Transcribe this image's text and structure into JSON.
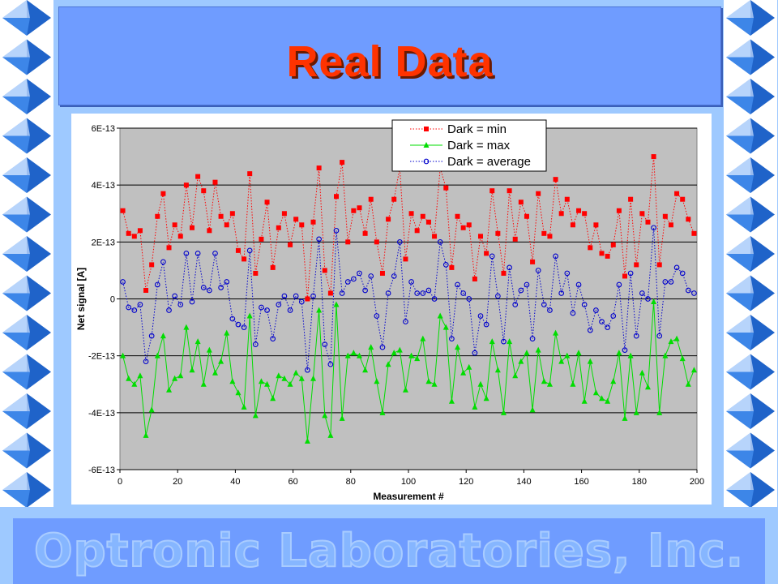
{
  "slide": {
    "title": "Real Data",
    "footer": "Optronic Laboratories, Inc."
  },
  "colors": {
    "background": "#9ec9ff",
    "title_bar": "#6f9cff",
    "title_text": "#ff3300",
    "plot_area": "#c0c0c0",
    "series_min": "#ff0000",
    "series_max": "#00dd00",
    "series_average": "#0000cc"
  },
  "decoration": {
    "side_icon": "blue-pyramid-icon"
  },
  "chart_data": {
    "type": "line",
    "title": "",
    "xlabel": "Measurement #",
    "ylabel": "Net signal [A]",
    "xlim": [
      0,
      200
    ],
    "ylim": [
      -6e-13,
      6e-13
    ],
    "x_ticks": [
      "0",
      "20",
      "40",
      "60",
      "80",
      "100",
      "120",
      "140",
      "160",
      "180",
      "200"
    ],
    "y_ticks": [
      "6E-13",
      "4E-13",
      "2E-13",
      "0",
      "-2E-13",
      "-4E-13",
      "-6E-13"
    ],
    "grid": "horizontal",
    "legend_position": "top-center",
    "x": {
      "start": 1,
      "step": 2,
      "count": 100
    },
    "series": [
      {
        "name": "Dark = min",
        "marker": "square",
        "line": "dotted",
        "color": "#ff0000",
        "values": [
          3.1,
          2.3,
          2.2,
          2.4,
          0.3,
          1.2,
          2.9,
          3.7,
          1.8,
          2.6,
          2.2,
          4.0,
          2.5,
          4.3,
          3.8,
          2.4,
          4.1,
          2.9,
          2.6,
          3.0,
          1.7,
          1.4,
          4.4,
          0.9,
          2.1,
          3.4,
          1.1,
          2.5,
          3.0,
          1.9,
          2.8,
          2.6,
          0.0,
          2.7,
          4.6,
          1.0,
          0.2,
          3.6,
          4.8,
          2.0,
          3.1,
          3.2,
          2.3,
          3.5,
          2.0,
          0.9,
          2.8,
          3.5,
          4.6,
          1.4,
          3.0,
          2.4,
          2.9,
          2.7,
          2.2,
          4.6,
          3.9,
          1.1,
          2.9,
          2.5,
          2.6,
          0.7,
          2.2,
          1.6,
          3.8,
          2.3,
          0.9,
          3.8,
          2.1,
          3.4,
          2.9,
          1.3,
          3.7,
          2.3,
          2.2,
          4.2,
          3.0,
          3.5,
          2.6,
          3.1,
          3.0,
          1.8,
          2.6,
          1.6,
          1.5,
          1.9,
          3.1,
          0.8,
          3.5,
          1.2,
          3.0,
          2.7,
          5.0,
          1.2,
          2.9,
          2.6,
          3.7,
          3.5,
          2.8,
          2.3
        ]
      },
      {
        "name": "Dark = max",
        "marker": "triangle",
        "line": "solid",
        "color": "#00dd00",
        "values": [
          -2.0,
          -2.8,
          -3.0,
          -2.7,
          -4.8,
          -3.9,
          -2.0,
          -1.3,
          -3.2,
          -2.8,
          -2.7,
          -1.0,
          -2.5,
          -1.5,
          -3.0,
          -1.8,
          -2.6,
          -2.2,
          -1.2,
          -2.9,
          -3.3,
          -3.8,
          -0.6,
          -4.1,
          -2.9,
          -3.0,
          -3.5,
          -2.7,
          -2.8,
          -3.0,
          -2.6,
          -2.8,
          -5.0,
          -2.8,
          -0.4,
          -4.1,
          -4.8,
          -0.2,
          -4.2,
          -2.0,
          -1.9,
          -2.0,
          -2.5,
          -1.7,
          -2.9,
          -4.0,
          -2.3,
          -1.9,
          -1.8,
          -3.2,
          -2.0,
          -2.1,
          -1.4,
          -2.9,
          -3.0,
          -0.6,
          -1.0,
          -3.6,
          -1.7,
          -2.6,
          -2.4,
          -3.8,
          -3.0,
          -3.5,
          -1.5,
          -2.5,
          -4.0,
          -1.5,
          -2.7,
          -2.2,
          -1.9,
          -3.9,
          -1.8,
          -2.9,
          -3.0,
          -1.2,
          -2.2,
          -2.0,
          -3.0,
          -1.9,
          -3.6,
          -2.2,
          -3.3,
          -3.5,
          -3.6,
          -2.9,
          -1.9,
          -4.2,
          -2.0,
          -4.0,
          -2.6,
          -3.1,
          -0.1,
          -4.0,
          -2.0,
          -1.5,
          -1.4,
          -2.1,
          -3.0,
          -2.5
        ]
      },
      {
        "name": "Dark = average",
        "marker": "circle",
        "line": "dotted",
        "color": "#0000cc",
        "values": [
          0.6,
          -0.3,
          -0.4,
          -0.2,
          -2.2,
          -1.3,
          0.5,
          1.3,
          -0.4,
          0.1,
          -0.2,
          1.6,
          -0.1,
          1.6,
          0.4,
          0.3,
          1.6,
          0.4,
          0.6,
          -0.7,
          -0.9,
          -1.0,
          1.7,
          -1.6,
          -0.3,
          -0.4,
          -1.4,
          -0.2,
          0.1,
          -0.4,
          0.1,
          -0.1,
          -2.5,
          0.1,
          2.1,
          -1.6,
          -2.3,
          2.4,
          0.2,
          0.6,
          0.7,
          0.9,
          0.3,
          0.8,
          -0.6,
          -1.7,
          0.2,
          0.8,
          2.0,
          -0.8,
          0.6,
          0.2,
          0.2,
          0.3,
          0.0,
          2.0,
          1.2,
          -1.4,
          0.5,
          0.2,
          0.0,
          -1.9,
          -0.6,
          -0.9,
          1.5,
          0.1,
          -1.5,
          1.1,
          -0.2,
          0.3,
          0.5,
          -1.4,
          1.0,
          -0.2,
          -0.4,
          1.5,
          0.2,
          0.9,
          -0.5,
          0.5,
          -0.2,
          -1.1,
          -0.4,
          -0.8,
          -1.0,
          -0.6,
          0.5,
          -1.8,
          0.9,
          -1.3,
          0.2,
          0.0,
          2.5,
          -1.3,
          0.6,
          0.6,
          1.1,
          0.9,
          0.3,
          0.2
        ]
      }
    ]
  }
}
